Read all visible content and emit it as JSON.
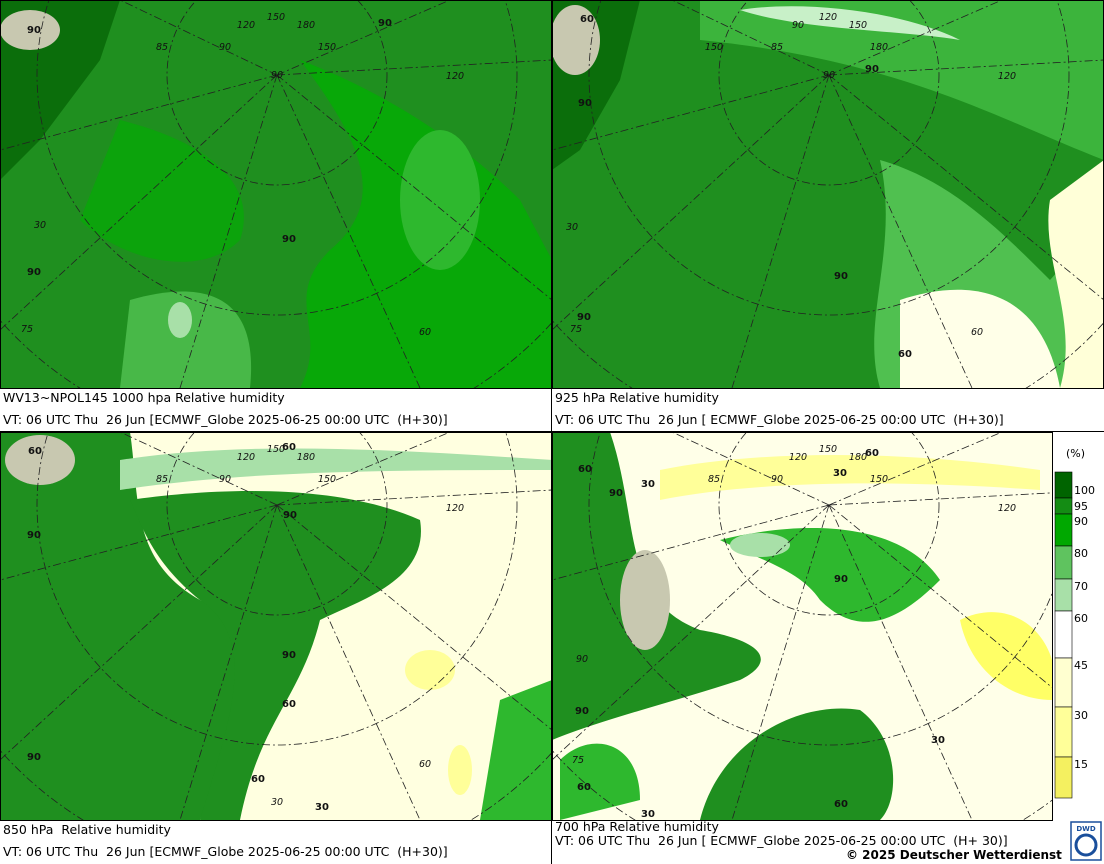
{
  "panels": [
    {
      "caption": [
        "WV13~NPOL145 1000 hpa Relative humidity",
        "VT: 06 UTC Thu  26 Jun [ECMWF_Globe 2025-06-25 00:00 UTC  (H+30)]"
      ],
      "labels": [
        "90",
        "120",
        "150",
        "180",
        "150",
        "85",
        "90",
        "90",
        "120",
        "90",
        "90",
        "60",
        "75",
        "30",
        "90"
      ]
    },
    {
      "caption": [
        "925 hPa Relative humidity",
        "VT: 06 UTC Thu  26 Jun [ ECMWF_Globe 2025-06-25 00:00 UTC  (H+30)]"
      ],
      "labels": [
        "60",
        "90",
        "120",
        "150",
        "180",
        "150",
        "85",
        "90",
        "90",
        "120",
        "90",
        "90",
        "60",
        "60",
        "90",
        "30",
        "75"
      ]
    },
    {
      "caption": [
        "850 hPa  Relative humidity",
        "VT: 06 UTC Thu  26 Jun [ECMWF_Globe 2025-06-25 00:00 UTC  (H+30)]"
      ],
      "labels": [
        "60",
        "120",
        "150",
        "60",
        "180",
        "150",
        "85",
        "90",
        "90",
        "120",
        "90",
        "90",
        "60",
        "60",
        "30",
        "90",
        "60",
        "30"
      ]
    },
    {
      "caption": [
        "700 hPa Relative humidity",
        "VT: 06 UTC Thu  26 Jun [ ECMWF_Globe 2025-06-25 00:00 UTC  (H+ 30)]"
      ],
      "labels": [
        "60",
        "120",
        "150",
        "60",
        "180",
        "30",
        "150",
        "85",
        "90",
        "90",
        "30",
        "90",
        "120",
        "90",
        "30",
        "90",
        "60",
        "30",
        "60",
        "75"
      ]
    }
  ],
  "legend": {
    "unit": "(%)",
    "ticks": [
      "100",
      "95",
      "90",
      "80",
      "70",
      "60",
      "45",
      "30",
      "15"
    ]
  },
  "copyright": "© 2025 Deutscher Wetterdienst",
  "logo": "DWD"
}
